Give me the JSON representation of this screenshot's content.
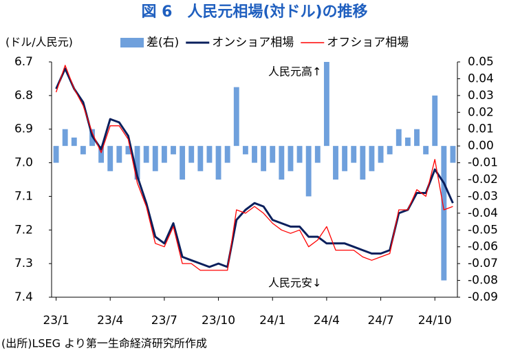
{
  "chart_data": {
    "type": "combo",
    "title": "図 6　人民元相場(対ドル)の推移",
    "y_axis_label": "(ドル/人民元)",
    "annotations": [
      "人民元高↑",
      "人民元安↓"
    ],
    "source": "(出所)LSEG より第一生命経済研究所作成",
    "categories": [
      "23/1",
      null,
      null,
      null,
      null,
      null,
      "23/4",
      null,
      null,
      null,
      null,
      null,
      "23/7",
      null,
      null,
      null,
      null,
      null,
      "23/10",
      null,
      null,
      null,
      null,
      null,
      "24/1",
      null,
      null,
      null,
      null,
      null,
      "24/4",
      null,
      null,
      null,
      null,
      null,
      "24/7",
      null,
      null,
      null,
      null,
      null,
      "24/10",
      null,
      null
    ],
    "ylim": [
      6.7,
      7.4
    ],
    "y_inverted": true,
    "yticks": [
      6.7,
      6.8,
      6.9,
      {
        "value": 7,
        "label": "7.0"
      },
      7.1,
      7.2,
      7.3,
      7.4
    ],
    "y2lim": [
      -0.09,
      0.05
    ],
    "y2ticks": [
      0.05,
      0.04,
      0.03,
      0.02,
      0.01,
      {
        "value": 0,
        "label": "0.00"
      },
      -0.01,
      -0.02,
      -0.03,
      -0.04,
      -0.05,
      -0.06,
      -0.07,
      -0.08,
      -0.09
    ],
    "y2_negative_color": "#ff0000",
    "series": [
      {
        "name": "差(右)",
        "type": "bar",
        "axis": "y2",
        "color": "#6fa0dc",
        "values": [
          -0.01,
          0.01,
          0.005,
          -0.005,
          0.01,
          -0.01,
          -0.015,
          -0.01,
          -0.005,
          -0.02,
          -0.01,
          -0.015,
          -0.01,
          -0.005,
          -0.02,
          -0.01,
          -0.015,
          -0.01,
          -0.02,
          -0.01,
          0.035,
          -0.005,
          -0.01,
          -0.015,
          -0.01,
          -0.02,
          -0.015,
          -0.01,
          -0.03,
          -0.01,
          0.05,
          -0.02,
          -0.015,
          -0.01,
          -0.02,
          -0.015,
          -0.01,
          -0.005,
          0.01,
          0.005,
          0.01,
          -0.005,
          0.03,
          -0.08,
          -0.01
        ]
      },
      {
        "name": "オンショア相場",
        "type": "line",
        "color": "#0a1f5c",
        "values": [
          6.78,
          6.72,
          6.78,
          6.82,
          6.92,
          6.96,
          6.87,
          6.88,
          6.92,
          7.04,
          7.12,
          7.22,
          7.24,
          7.18,
          7.28,
          7.29,
          7.3,
          7.31,
          7.3,
          7.31,
          7.17,
          7.14,
          7.12,
          7.13,
          7.17,
          7.18,
          7.19,
          7.19,
          7.22,
          7.22,
          7.24,
          7.24,
          7.24,
          7.25,
          7.26,
          7.27,
          7.27,
          7.26,
          7.15,
          7.14,
          7.09,
          7.09,
          7.02,
          7.06,
          7.12
        ]
      },
      {
        "name": "オフショア相場",
        "type": "line",
        "color": "#ff0000",
        "values": [
          6.79,
          6.71,
          6.78,
          6.83,
          6.91,
          6.97,
          6.89,
          6.89,
          6.93,
          7.06,
          7.13,
          7.24,
          7.25,
          7.19,
          7.3,
          7.3,
          7.32,
          7.32,
          7.32,
          7.32,
          7.14,
          7.15,
          7.13,
          7.15,
          7.18,
          7.2,
          7.21,
          7.2,
          7.25,
          7.23,
          7.19,
          7.26,
          7.26,
          7.26,
          7.28,
          7.29,
          7.28,
          7.27,
          7.14,
          7.14,
          7.08,
          7.1,
          6.99,
          7.14,
          7.13
        ]
      }
    ]
  }
}
